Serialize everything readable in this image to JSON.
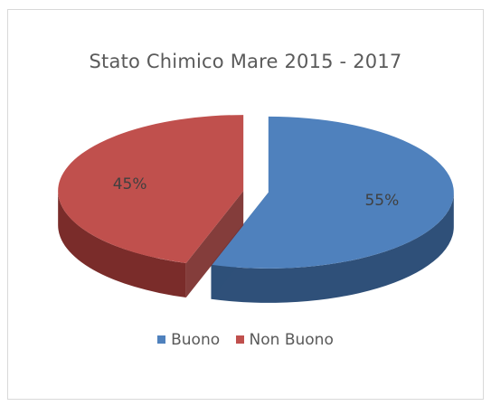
{
  "chart_data": {
    "type": "pie",
    "title": "Stato Chimico Mare 2015 - 2017",
    "categories": [
      "Buono",
      "Non Buono"
    ],
    "values": [
      55,
      45
    ],
    "data_labels": [
      "55%",
      "45%"
    ],
    "colors": [
      "#4f81bd",
      "#c0504d"
    ],
    "side_colors": [
      "#2f5079",
      "#7a2c2a"
    ],
    "style": "3d-exploded",
    "legend_position": "bottom"
  }
}
